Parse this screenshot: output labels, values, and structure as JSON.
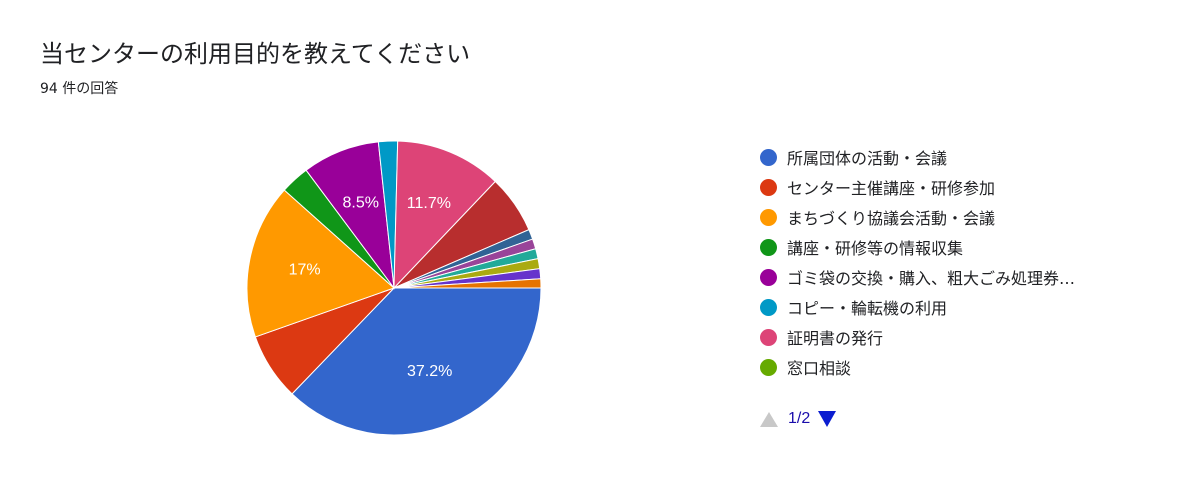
{
  "title": "当センターの利用目的を教えてください",
  "response_count": "94 件の回答",
  "pager": {
    "text": "1/2",
    "prev_icon": "triangle-up-icon",
    "next_icon": "triangle-down-icon"
  },
  "chart_data": {
    "type": "pie",
    "title": "当センターの利用目的を教えてください",
    "legend_position": "right",
    "slices": [
      {
        "label": "所属団体の活動・会議",
        "value": 37.2,
        "color": "#3366cc",
        "display": "37.2%"
      },
      {
        "label": "センター主催講座・研修参加",
        "value": 7.4,
        "color": "#dc3912",
        "display": ""
      },
      {
        "label": "まちづくり協議会活動・会議",
        "value": 17,
        "color": "#ff9900",
        "display": "17%"
      },
      {
        "label": "講座・研修等の情報収集",
        "value": 3.2,
        "color": "#109618",
        "display": ""
      },
      {
        "label": "ゴミ袋の交換・購入、粗大ごみ処理券…",
        "value": 8.5,
        "color": "#990099",
        "display": "8.5%"
      },
      {
        "label": "コピー・輪転機の利用",
        "value": 2.1,
        "color": "#0099c6",
        "display": ""
      },
      {
        "label": "証明書の発行",
        "value": 11.7,
        "color": "#dd4477",
        "display": "11.7%"
      },
      {
        "label": "",
        "value": 6.4,
        "color": "#b82e2e",
        "display": ""
      },
      {
        "label": "",
        "value": 1.1,
        "color": "#316395",
        "display": ""
      },
      {
        "label": "",
        "value": 1.1,
        "color": "#994499",
        "display": ""
      },
      {
        "label": "",
        "value": 1.1,
        "color": "#22aa99",
        "display": ""
      },
      {
        "label": "",
        "value": 1.1,
        "color": "#aaaa11",
        "display": ""
      },
      {
        "label": "",
        "value": 1.1,
        "color": "#6633cc",
        "display": ""
      },
      {
        "label": "",
        "value": 1.0,
        "color": "#e67300",
        "display": ""
      }
    ],
    "legend_visible": [
      {
        "label": "所属団体の活動・会議",
        "color": "#3366cc"
      },
      {
        "label": "センター主催講座・研修参加",
        "color": "#dc3912"
      },
      {
        "label": "まちづくり協議会活動・会議",
        "color": "#ff9900"
      },
      {
        "label": "講座・研修等の情報収集",
        "color": "#109618"
      },
      {
        "label": "ゴミ袋の交換・購入、粗大ごみ処理券…",
        "color": "#990099"
      },
      {
        "label": "コピー・輪転機の利用",
        "color": "#0099c6"
      },
      {
        "label": "証明書の発行",
        "color": "#dd4477"
      },
      {
        "label": "窓口相談",
        "color": "#66aa00"
      }
    ]
  }
}
